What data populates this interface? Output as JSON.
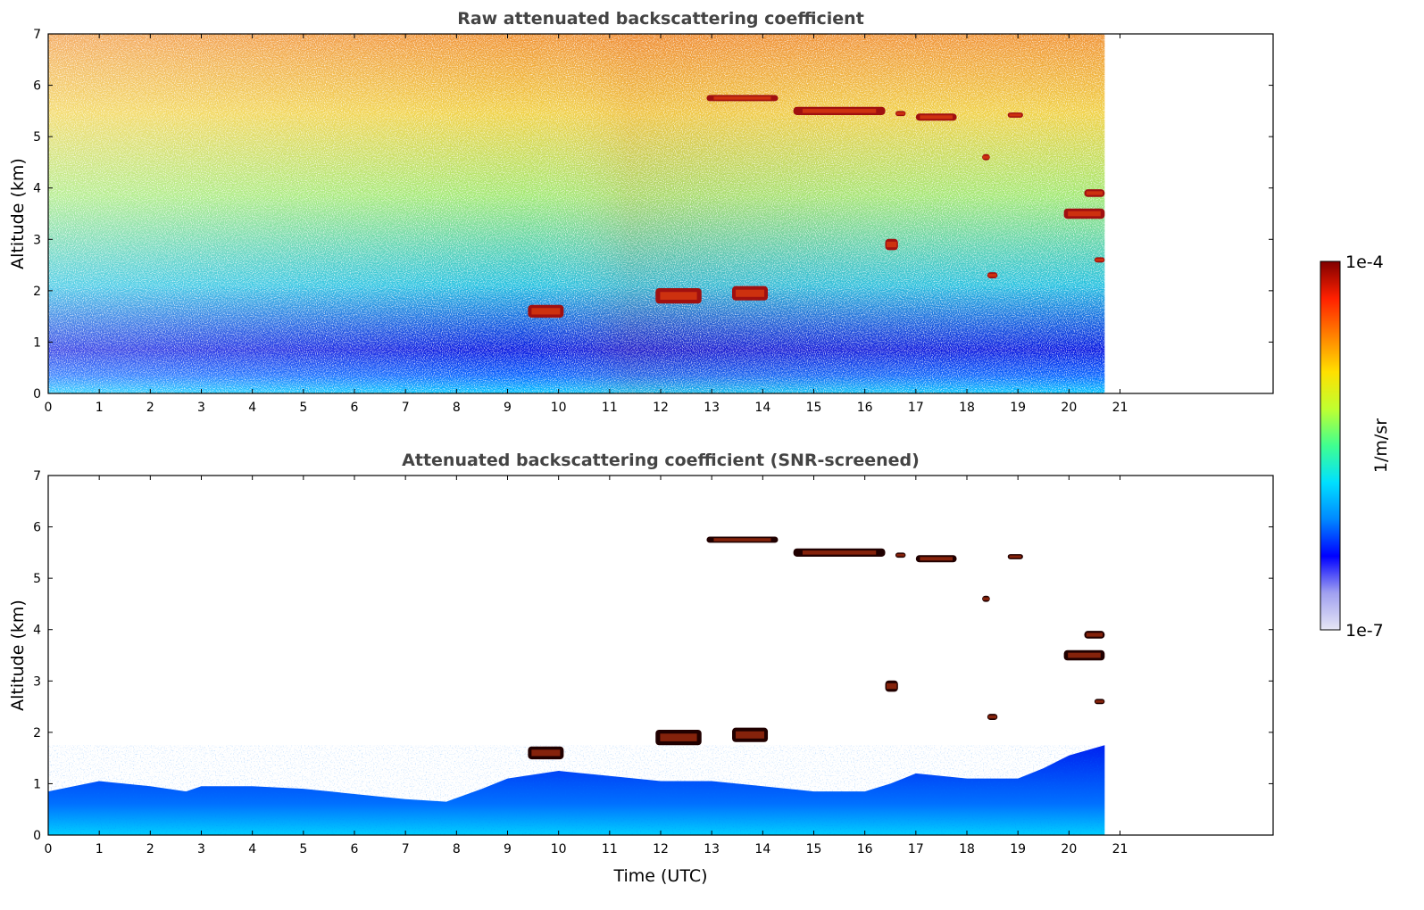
{
  "chart_data": [
    {
      "type": "heatmap",
      "title": "Raw attenuated backscattering coefficient",
      "xlabel": "",
      "ylabel": "Altitude (km)",
      "xlim": [
        0,
        24
      ],
      "ylim": [
        0,
        7
      ],
      "x_ticks": [
        "0",
        "1",
        "2",
        "3",
        "4",
        "5",
        "6",
        "7",
        "8",
        "9",
        "10",
        "11",
        "12",
        "13",
        "14",
        "15",
        "16",
        "17",
        "18",
        "19",
        "20",
        "21"
      ],
      "y_ticks": [
        "0",
        "1",
        "2",
        "3",
        "4",
        "5",
        "6",
        "7"
      ],
      "data_extent_hours": 20.7,
      "cloud_layers": [
        {
          "t0": 12.9,
          "t1": 14.3,
          "alt": 5.75,
          "thick": 0.12
        },
        {
          "t0": 14.6,
          "t1": 16.4,
          "alt": 5.5,
          "thick": 0.16
        },
        {
          "t0": 16.6,
          "t1": 16.8,
          "alt": 5.45,
          "thick": 0.1
        },
        {
          "t0": 17.0,
          "t1": 17.8,
          "alt": 5.38,
          "thick": 0.14
        },
        {
          "t0": 18.8,
          "t1": 19.1,
          "alt": 5.42,
          "thick": 0.1
        },
        {
          "t0": 18.3,
          "t1": 18.45,
          "alt": 4.6,
          "thick": 0.12
        },
        {
          "t0": 19.9,
          "t1": 20.7,
          "alt": 3.5,
          "thick": 0.2
        },
        {
          "t0": 20.3,
          "t1": 20.7,
          "alt": 3.9,
          "thick": 0.15
        },
        {
          "t0": 16.4,
          "t1": 16.65,
          "alt": 2.9,
          "thick": 0.22
        },
        {
          "t0": 18.4,
          "t1": 18.6,
          "alt": 2.3,
          "thick": 0.12
        },
        {
          "t0": 20.5,
          "t1": 20.7,
          "alt": 2.6,
          "thick": 0.1
        },
        {
          "t0": 11.9,
          "t1": 12.8,
          "alt": 1.9,
          "thick": 0.3
        },
        {
          "t0": 13.4,
          "t1": 14.1,
          "alt": 1.95,
          "thick": 0.28
        },
        {
          "t0": 9.4,
          "t1": 10.1,
          "alt": 1.6,
          "thick": 0.25
        }
      ]
    },
    {
      "type": "heatmap",
      "title": "Attenuated backscattering coefficient (SNR-screened)",
      "xlabel": "Time (UTC)",
      "ylabel": "Altitude (km)",
      "xlim": [
        0,
        24
      ],
      "ylim": [
        0,
        7
      ],
      "x_ticks": [
        "0",
        "1",
        "2",
        "3",
        "4",
        "5",
        "6",
        "7",
        "8",
        "9",
        "10",
        "11",
        "12",
        "13",
        "14",
        "15",
        "16",
        "17",
        "18",
        "19",
        "20",
        "21"
      ],
      "y_ticks": [
        "0",
        "1",
        "2",
        "3",
        "4",
        "5",
        "6",
        "7"
      ],
      "data_extent_hours": 20.7,
      "boundary_layer_top_km": [
        [
          0,
          0.85
        ],
        [
          1,
          1.05
        ],
        [
          2,
          0.95
        ],
        [
          2.7,
          0.85
        ],
        [
          3,
          0.95
        ],
        [
          4,
          0.95
        ],
        [
          5,
          0.9
        ],
        [
          6,
          0.8
        ],
        [
          7,
          0.7
        ],
        [
          7.8,
          0.65
        ],
        [
          8.5,
          0.9
        ],
        [
          9,
          1.1
        ],
        [
          10,
          1.25
        ],
        [
          11,
          1.15
        ],
        [
          12,
          1.05
        ],
        [
          13,
          1.05
        ],
        [
          14,
          0.95
        ],
        [
          15,
          0.85
        ],
        [
          16,
          0.85
        ],
        [
          16.5,
          1.0
        ],
        [
          17,
          1.2
        ],
        [
          18,
          1.1
        ],
        [
          19,
          1.1
        ],
        [
          19.5,
          1.3
        ],
        [
          20,
          1.55
        ],
        [
          20.7,
          1.75
        ]
      ]
    }
  ],
  "colorbar": {
    "label": "1/m/sr",
    "max_label": "1e-4",
    "min_label": "1e-7",
    "colors": [
      "#e6e6f5",
      "#a0a0f0",
      "#0000ff",
      "#0088ff",
      "#00e0ff",
      "#40ff90",
      "#c0ff30",
      "#ffe000",
      "#ff8000",
      "#ff2000",
      "#800000"
    ]
  }
}
